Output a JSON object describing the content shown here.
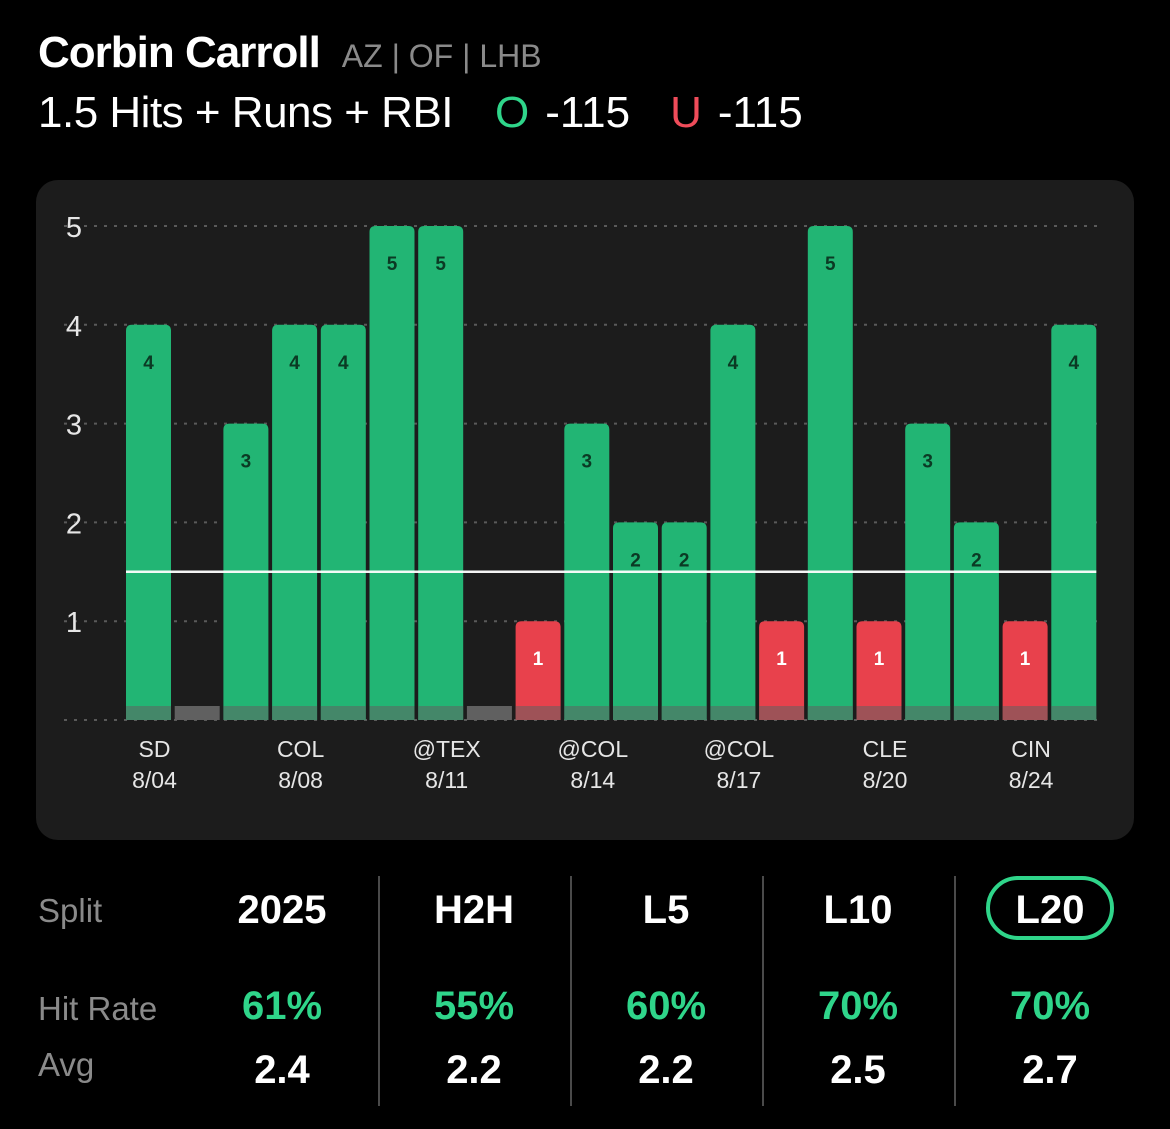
{
  "player": {
    "name": "Corbin Carroll",
    "meta": "AZ | OF | LHB"
  },
  "prop": {
    "label": "1.5 Hits + Runs + RBI",
    "over_letter": "O",
    "over_odds": "-115",
    "under_letter": "U",
    "under_odds": "-115"
  },
  "colors": {
    "over": "#2fd58a",
    "under": "#ef4c5a",
    "bar_over": "#22b574",
    "bar_under": "#e8414c",
    "baseline_stub": "#606060",
    "card_bg": "#1c1c1c"
  },
  "chart_data": {
    "type": "bar",
    "line": 1.5,
    "ylim": [
      0,
      5
    ],
    "y_ticks": [
      1,
      2,
      3,
      4,
      5
    ],
    "values": [
      4,
      0,
      3,
      4,
      4,
      5,
      5,
      0,
      1,
      3,
      2,
      2,
      4,
      1,
      5,
      1,
      3,
      2,
      1,
      4
    ],
    "x_labels": [
      {
        "index": 0,
        "opponent": "SD",
        "date": "8/04"
      },
      {
        "index": 3,
        "opponent": "COL",
        "date": "8/08"
      },
      {
        "index": 6,
        "opponent": "@TEX",
        "date": "8/11"
      },
      {
        "index": 9,
        "opponent": "@COL",
        "date": "8/14"
      },
      {
        "index": 12,
        "opponent": "@COL",
        "date": "8/17"
      },
      {
        "index": 15,
        "opponent": "CLE",
        "date": "8/20"
      },
      {
        "index": 18,
        "opponent": "CIN",
        "date": "8/24"
      }
    ]
  },
  "splits": {
    "split_label": "Split",
    "hit_rate_label": "Hit Rate",
    "avg_label": "Avg",
    "selected": "L20",
    "columns": [
      {
        "label": "2025",
        "hit_rate": "61%",
        "avg": "2.4"
      },
      {
        "label": "H2H",
        "hit_rate": "55%",
        "avg": "2.2"
      },
      {
        "label": "L5",
        "hit_rate": "60%",
        "avg": "2.2"
      },
      {
        "label": "L10",
        "hit_rate": "70%",
        "avg": "2.5"
      },
      {
        "label": "L20",
        "hit_rate": "70%",
        "avg": "2.7"
      }
    ]
  }
}
